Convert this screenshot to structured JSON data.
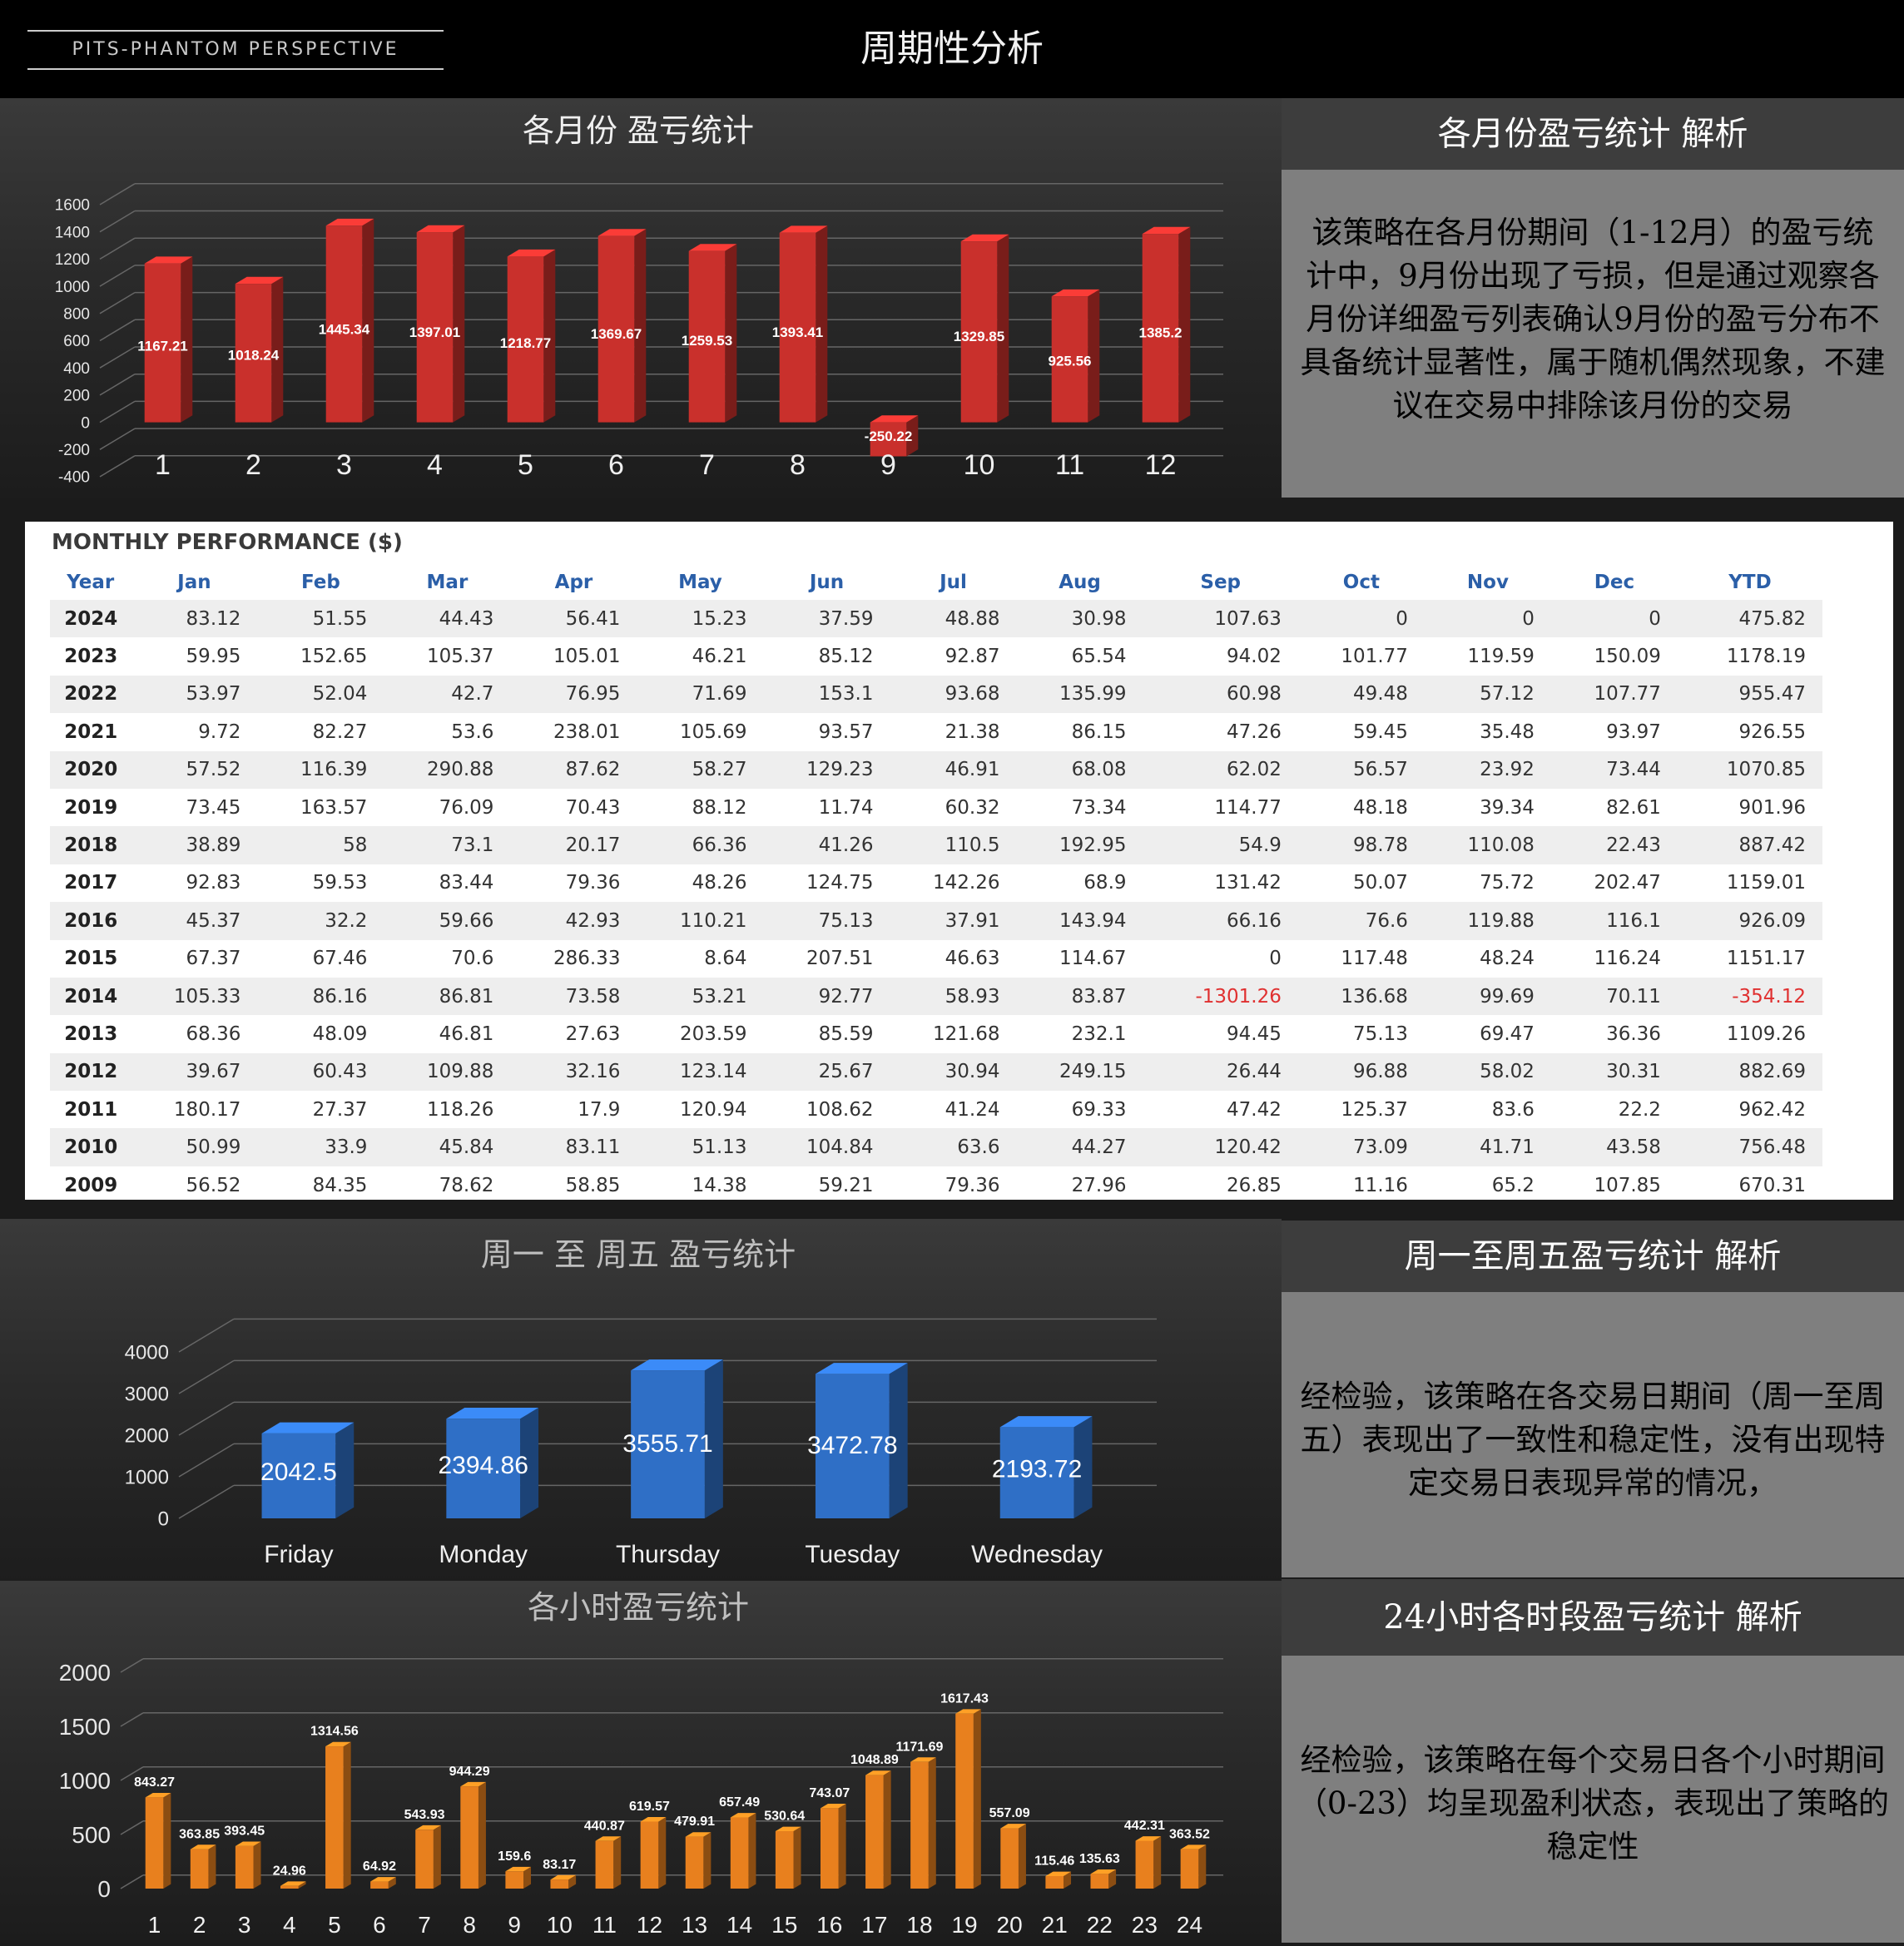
{
  "header": {
    "brand": "PITS-PHANTOM PERSPECTIVE",
    "title": "周期性分析"
  },
  "monthly_panel": {
    "title": "各月份 盈亏统计",
    "side_title": "各月份盈亏统计  解析",
    "side_text": "该策略在各月份期间（1-12月）的盈亏统计中，9月份出现了亏损，但是通过观察各月份详细盈亏列表确认9月份的盈亏分布不具备统计显著性，属于随机偶然现象，不建议在交易中排除该月份的交易"
  },
  "table": {
    "title": "MONTHLY PERFORMANCE ($)",
    "headers": [
      "Year",
      "Jan",
      "Feb",
      "Mar",
      "Apr",
      "May",
      "Jun",
      "Jul",
      "Aug",
      "Sep",
      "Oct",
      "Nov",
      "Dec",
      "YTD"
    ],
    "rows": [
      [
        "2024",
        "83.12",
        "51.55",
        "44.43",
        "56.41",
        "15.23",
        "37.59",
        "48.88",
        "30.98",
        "107.63",
        "0",
        "0",
        "0",
        "475.82"
      ],
      [
        "2023",
        "59.95",
        "152.65",
        "105.37",
        "105.01",
        "46.21",
        "85.12",
        "92.87",
        "65.54",
        "94.02",
        "101.77",
        "119.59",
        "150.09",
        "1178.19"
      ],
      [
        "2022",
        "53.97",
        "52.04",
        "42.7",
        "76.95",
        "71.69",
        "153.1",
        "93.68",
        "135.99",
        "60.98",
        "49.48",
        "57.12",
        "107.77",
        "955.47"
      ],
      [
        "2021",
        "9.72",
        "82.27",
        "53.6",
        "238.01",
        "105.69",
        "93.57",
        "21.38",
        "86.15",
        "47.26",
        "59.45",
        "35.48",
        "93.97",
        "926.55"
      ],
      [
        "2020",
        "57.52",
        "116.39",
        "290.88",
        "87.62",
        "58.27",
        "129.23",
        "46.91",
        "68.08",
        "62.02",
        "56.57",
        "23.92",
        "73.44",
        "1070.85"
      ],
      [
        "2019",
        "73.45",
        "163.57",
        "76.09",
        "70.43",
        "88.12",
        "11.74",
        "60.32",
        "73.34",
        "114.77",
        "48.18",
        "39.34",
        "82.61",
        "901.96"
      ],
      [
        "2018",
        "38.89",
        "58",
        "73.1",
        "20.17",
        "66.36",
        "41.26",
        "110.5",
        "192.95",
        "54.9",
        "98.78",
        "110.08",
        "22.43",
        "887.42"
      ],
      [
        "2017",
        "92.83",
        "59.53",
        "83.44",
        "79.36",
        "48.26",
        "124.75",
        "142.26",
        "68.9",
        "131.42",
        "50.07",
        "75.72",
        "202.47",
        "1159.01"
      ],
      [
        "2016",
        "45.37",
        "32.2",
        "59.66",
        "42.93",
        "110.21",
        "75.13",
        "37.91",
        "143.94",
        "66.16",
        "76.6",
        "119.88",
        "116.1",
        "926.09"
      ],
      [
        "2015",
        "67.37",
        "67.46",
        "70.6",
        "286.33",
        "8.64",
        "207.51",
        "46.63",
        "114.67",
        "0",
        "117.48",
        "48.24",
        "116.24",
        "1151.17"
      ],
      [
        "2014",
        "105.33",
        "86.16",
        "86.81",
        "73.58",
        "53.21",
        "92.77",
        "58.93",
        "83.87",
        "-1301.26",
        "136.68",
        "99.69",
        "70.11",
        "-354.12"
      ],
      [
        "2013",
        "68.36",
        "48.09",
        "46.81",
        "27.63",
        "203.59",
        "85.59",
        "121.68",
        "232.1",
        "94.45",
        "75.13",
        "69.47",
        "36.36",
        "1109.26"
      ],
      [
        "2012",
        "39.67",
        "60.43",
        "109.88",
        "32.16",
        "123.14",
        "25.67",
        "30.94",
        "249.15",
        "26.44",
        "96.88",
        "58.02",
        "30.31",
        "882.69"
      ],
      [
        "2011",
        "180.17",
        "27.37",
        "118.26",
        "17.9",
        "120.94",
        "108.62",
        "41.24",
        "69.33",
        "47.42",
        "125.37",
        "83.6",
        "22.2",
        "962.42"
      ],
      [
        "2010",
        "50.99",
        "33.9",
        "45.84",
        "83.11",
        "51.13",
        "104.84",
        "63.6",
        "44.27",
        "120.42",
        "73.09",
        "41.71",
        "43.58",
        "756.48"
      ],
      [
        "2009",
        "56.52",
        "84.35",
        "78.62",
        "58.85",
        "14.38",
        "59.21",
        "79.36",
        "27.96",
        "26.85",
        "11.16",
        "65.2",
        "107.85",
        "670.31"
      ]
    ]
  },
  "weekday_panel": {
    "title": "周一 至 周五  盈亏统计",
    "side_title": "周一至周五盈亏统计  解析",
    "side_text": "经检验，该策略在各交易日期间（周一至周五）表现出了一致性和稳定性，没有出现特定交易日表现异常的情况，"
  },
  "hourly_panel": {
    "title": "各小时盈亏统计",
    "side_title": "24小时各时段盈亏统计  解析",
    "side_text": "经检验，该策略在每个交易日各个小时期间（0-23）均呈现盈利状态，表现出了策略的稳定性"
  },
  "colors": {
    "monthly_bar": "#c9302c",
    "weekday_bar": "#2f6fc6",
    "hourly_bar": "#e8801e",
    "negative": "#e03030"
  },
  "chart_data": [
    {
      "type": "bar",
      "title": "各月份 盈亏统计",
      "categories": [
        "1",
        "2",
        "3",
        "4",
        "5",
        "6",
        "7",
        "8",
        "9",
        "10",
        "11",
        "12"
      ],
      "values": [
        1167.21,
        1018.24,
        1445.34,
        1397.01,
        1218.77,
        1369.67,
        1259.53,
        1393.41,
        -250.22,
        1329.85,
        925.56,
        1385.2
      ],
      "labels": [
        "1167.21",
        "1018.24",
        "1445.34",
        "1397.01",
        "1218.77",
        "1369.67",
        "1259.53",
        "1393.41",
        "-250.22",
        "1329.85",
        "925.56",
        "1385.2"
      ],
      "ylim": [
        -400,
        1600
      ],
      "yticks": [
        "-400",
        "-200",
        "0",
        "200",
        "400",
        "600",
        "800",
        "1000",
        "1200",
        "1400",
        "1600"
      ],
      "grid": true
    },
    {
      "type": "bar",
      "title": "周一 至 周五  盈亏统计",
      "categories": [
        "Friday",
        "Monday",
        "Thursday",
        "Tuesday",
        "Wednesday"
      ],
      "values": [
        2042.5,
        2394.86,
        3555.71,
        3472.78,
        2193.72
      ],
      "labels": [
        "2042.5",
        "2394.86",
        "3555.71",
        "3472.78",
        "2193.72"
      ],
      "ylim": [
        0,
        4000
      ],
      "yticks": [
        "0",
        "1000",
        "2000",
        "3000",
        "4000"
      ],
      "grid": true
    },
    {
      "type": "bar",
      "title": "各小时盈亏统计",
      "categories": [
        "1",
        "2",
        "3",
        "4",
        "5",
        "6",
        "7",
        "8",
        "9",
        "10",
        "11",
        "12",
        "13",
        "14",
        "15",
        "16",
        "17",
        "18",
        "19",
        "20",
        "21",
        "22",
        "23",
        "24"
      ],
      "values": [
        843.27,
        363.85,
        393.45,
        24.96,
        1314.56,
        64.92,
        543.93,
        944.29,
        159.6,
        83.17,
        440.87,
        619.57,
        479.91,
        657.49,
        530.64,
        743.07,
        1048.89,
        1171.69,
        1617.43,
        557.09,
        115.46,
        135.63,
        442.31,
        363.52
      ],
      "labels": [
        "843.27",
        "363.85",
        "393.45",
        "24.96",
        "1314.56",
        "64.92",
        "543.93",
        "944.29",
        "159.6",
        "83.17",
        "440.87",
        "619.57",
        "479.91",
        "657.49",
        "530.64",
        "743.07",
        "1048.89",
        "1171.69",
        "1617.43",
        "557.09",
        "115.46",
        "135.63",
        "442.31",
        "363.52"
      ],
      "ylim": [
        0,
        2000
      ],
      "yticks": [
        "0",
        "500",
        "1000",
        "1500",
        "2000"
      ],
      "grid": true
    }
  ]
}
